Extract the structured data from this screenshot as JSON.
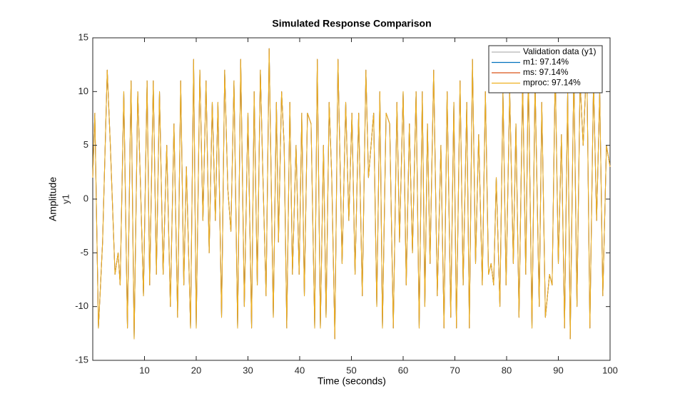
{
  "chart_data": {
    "type": "line",
    "title": "Simulated Response Comparison",
    "x_label": "Time (seconds)",
    "y_label": "Amplitude",
    "y_sublabel": "y1",
    "xlim": [
      0,
      100
    ],
    "xticks": [
      10,
      20,
      30,
      40,
      50,
      60,
      70,
      80,
      90,
      100
    ],
    "ylim": [
      -15,
      15
    ],
    "yticks": [
      -15,
      -10,
      -5,
      0,
      5,
      10,
      15
    ],
    "grid": false,
    "legend": "northeast",
    "x": [
      0,
      0.4,
      1.1,
      1.9,
      2.8,
      3.4,
      4.3,
      4.9,
      5.3,
      6,
      6.7,
      7.4,
      8,
      8.7,
      9.3,
      9.8,
      10.5,
      11,
      11.7,
      12.3,
      12.9,
      13.6,
      14.3,
      15,
      15.7,
      16.4,
      17,
      17.6,
      18.1,
      18.9,
      19.5,
      20,
      20.7,
      21.3,
      21.9,
      22.5,
      23.1,
      23.7,
      24.2,
      24.9,
      25.5,
      26.1,
      26.7,
      27.3,
      28,
      28.6,
      29.3,
      30,
      30.7,
      31.2,
      31.8,
      32.4,
      32.9,
      33.5,
      34.1,
      34.9,
      35.5,
      35.9,
      36.5,
      37,
      37.5,
      38.1,
      38.6,
      39.3,
      39.9,
      40.4,
      40.9,
      41.5,
      42.2,
      42.9,
      43.4,
      44,
      44.6,
      45.1,
      45.7,
      46.2,
      46.8,
      47.4,
      48.2,
      48.9,
      49.5,
      50.1,
      50.7,
      51.4,
      52.1,
      52.8,
      53.3,
      54.3,
      54.9,
      55.5,
      56,
      56.7,
      57.4,
      58.1,
      58.8,
      59.3,
      60,
      60.6,
      61.2,
      61.8,
      62.5,
      63.1,
      63.7,
      64.2,
      64.7,
      65.2,
      65.9,
      66.6,
      67.3,
      67.9,
      68.5,
      69.2,
      69.8,
      70.3,
      71,
      71.6,
      72.3,
      72.8,
      73.4,
      74,
      74.6,
      75.3,
      75.9,
      76.5,
      77,
      77.5,
      78,
      78.7,
      79.3,
      79.9,
      80.6,
      81.3,
      81.8,
      82.4,
      83.1,
      83.7,
      84.2,
      84.9,
      85.5,
      86.3,
      86.8,
      87.5,
      88.3,
      88.8,
      89.4,
      90,
      90.6,
      91.2,
      91.8,
      92.3,
      93,
      93.6,
      94.2,
      94.8,
      95.5,
      96.1,
      96.8,
      97.4,
      98,
      98.6,
      99.3,
      100
    ],
    "series": [
      {
        "name": "Validation data (y1)",
        "color": "#b4b4b4",
        "values": [
          2,
          8,
          -12,
          -4,
          12,
          5,
          -7,
          -5,
          -8,
          10,
          -12,
          11,
          -13,
          10,
          0,
          -9,
          11,
          -8,
          11,
          -7,
          10,
          -7,
          5,
          -10,
          7,
          -11,
          11,
          -8,
          3,
          -12,
          13,
          -12,
          12,
          -2,
          11,
          -5,
          9,
          -2,
          9,
          -11,
          12,
          1,
          -3,
          11,
          -12,
          13,
          -10,
          8,
          -12,
          10,
          -8,
          12,
          2,
          -9,
          14,
          -11,
          9,
          -4,
          10,
          5,
          -12,
          9,
          -7,
          5,
          -7,
          8,
          -9,
          8,
          7,
          -12,
          13,
          -12,
          5,
          -11,
          9,
          2,
          -13,
          13,
          -6,
          9,
          -2,
          8,
          -7,
          8,
          -9,
          12,
          2,
          8,
          -10,
          10,
          -12,
          8,
          7,
          -12,
          9,
          -4,
          10,
          -8,
          7,
          -5,
          10,
          -12,
          10,
          -10,
          7,
          -6,
          12,
          -9,
          5,
          -12,
          10,
          -11,
          9,
          -12,
          11,
          -8,
          9,
          -12,
          13,
          -6,
          6,
          -8,
          10,
          -7,
          -6,
          -8,
          2,
          -10,
          10,
          -8,
          10,
          -6,
          7,
          -11,
          11,
          -7,
          12,
          -12,
          11,
          -10,
          9,
          -11,
          -7,
          -8,
          12,
          -6,
          6,
          -12,
          10,
          -13,
          12,
          -10,
          11,
          5,
          13,
          -12,
          11,
          -2,
          10,
          -9,
          5,
          3
        ]
      },
      {
        "name": "m1: 97.14%",
        "color": "#0072bd",
        "values": [
          2,
          8,
          -12,
          -4,
          12,
          5,
          -7,
          -5,
          -8,
          10,
          -12,
          11,
          -13,
          10,
          0,
          -9,
          11,
          -8,
          11,
          -7,
          10,
          -7,
          5,
          -10,
          7,
          -11,
          11,
          -8,
          3,
          -12,
          13,
          -12,
          12,
          -2,
          11,
          -5,
          9,
          -2,
          9,
          -11,
          12,
          1,
          -3,
          11,
          -12,
          13,
          -10,
          8,
          -12,
          10,
          -8,
          12,
          2,
          -9,
          14,
          -11,
          9,
          -4,
          10,
          5,
          -12,
          9,
          -7,
          5,
          -7,
          8,
          -9,
          8,
          7,
          -12,
          13,
          -12,
          5,
          -11,
          9,
          2,
          -13,
          13,
          -6,
          9,
          -2,
          8,
          -7,
          8,
          -9,
          12,
          2,
          8,
          -10,
          10,
          -12,
          8,
          7,
          -12,
          9,
          -4,
          10,
          -8,
          7,
          -5,
          10,
          -12,
          10,
          -10,
          7,
          -6,
          12,
          -9,
          5,
          -12,
          10,
          -11,
          9,
          -12,
          11,
          -8,
          9,
          -12,
          13,
          -6,
          6,
          -8,
          10,
          -7,
          -6,
          -8,
          2,
          -10,
          10,
          -8,
          10,
          -6,
          7,
          -11,
          11,
          -7,
          12,
          -12,
          11,
          -10,
          9,
          -11,
          -7,
          -8,
          12,
          -6,
          6,
          -12,
          10,
          -13,
          12,
          -10,
          11,
          5,
          13,
          -12,
          11,
          -2,
          10,
          -9,
          5,
          3
        ]
      },
      {
        "name": "ms: 97.14%",
        "color": "#d95319",
        "values": [
          2,
          8,
          -12,
          -4,
          12,
          5,
          -7,
          -5,
          -8,
          10,
          -12,
          11,
          -13,
          10,
          0,
          -9,
          11,
          -8,
          11,
          -7,
          10,
          -7,
          5,
          -10,
          7,
          -11,
          11,
          -8,
          3,
          -12,
          13,
          -12,
          12,
          -2,
          11,
          -5,
          9,
          -2,
          9,
          -11,
          12,
          1,
          -3,
          11,
          -12,
          13,
          -10,
          8,
          -12,
          10,
          -8,
          12,
          2,
          -9,
          14,
          -11,
          9,
          -4,
          10,
          5,
          -12,
          9,
          -7,
          5,
          -7,
          8,
          -9,
          8,
          7,
          -12,
          13,
          -12,
          5,
          -11,
          9,
          2,
          -13,
          13,
          -6,
          9,
          -2,
          8,
          -7,
          8,
          -9,
          12,
          2,
          8,
          -10,
          10,
          -12,
          8,
          7,
          -12,
          9,
          -4,
          10,
          -8,
          7,
          -5,
          10,
          -12,
          10,
          -10,
          7,
          -6,
          12,
          -9,
          5,
          -12,
          10,
          -11,
          9,
          -12,
          11,
          -8,
          9,
          -12,
          13,
          -6,
          6,
          -8,
          10,
          -7,
          -6,
          -8,
          2,
          -10,
          10,
          -8,
          10,
          -6,
          7,
          -11,
          11,
          -7,
          12,
          -12,
          11,
          -10,
          9,
          -11,
          -7,
          -8,
          12,
          -6,
          6,
          -12,
          10,
          -13,
          12,
          -10,
          11,
          5,
          13,
          -12,
          11,
          -2,
          10,
          -9,
          5,
          3
        ]
      },
      {
        "name": "mproc: 97.14%",
        "color": "#edb120",
        "values": [
          2,
          8,
          -12,
          -4,
          12,
          5,
          -7,
          -5,
          -8,
          10,
          -12,
          11,
          -13,
          10,
          0,
          -9,
          11,
          -8,
          11,
          -7,
          10,
          -7,
          5,
          -10,
          7,
          -11,
          11,
          -8,
          3,
          -12,
          13,
          -12,
          12,
          -2,
          11,
          -5,
          9,
          -2,
          9,
          -11,
          12,
          1,
          -3,
          11,
          -12,
          13,
          -10,
          8,
          -12,
          10,
          -8,
          12,
          2,
          -9,
          14,
          -11,
          9,
          -4,
          10,
          5,
          -12,
          9,
          -7,
          5,
          -7,
          8,
          -9,
          8,
          7,
          -12,
          13,
          -12,
          5,
          -11,
          9,
          2,
          -13,
          13,
          -6,
          9,
          -2,
          8,
          -7,
          8,
          -9,
          12,
          2,
          8,
          -10,
          10,
          -12,
          8,
          7,
          -12,
          9,
          -4,
          10,
          -8,
          7,
          -5,
          10,
          -12,
          10,
          -10,
          7,
          -6,
          12,
          -9,
          5,
          -12,
          10,
          -11,
          9,
          -12,
          11,
          -8,
          9,
          -12,
          13,
          -6,
          6,
          -8,
          10,
          -7,
          -6,
          -8,
          2,
          -10,
          10,
          -8,
          10,
          -6,
          7,
          -11,
          11,
          -7,
          12,
          -12,
          11,
          -10,
          9,
          -11,
          -7,
          -8,
          12,
          -6,
          6,
          -12,
          10,
          -13,
          12,
          -10,
          11,
          5,
          13,
          -12,
          11,
          -2,
          10,
          -9,
          5,
          3
        ]
      }
    ]
  }
}
